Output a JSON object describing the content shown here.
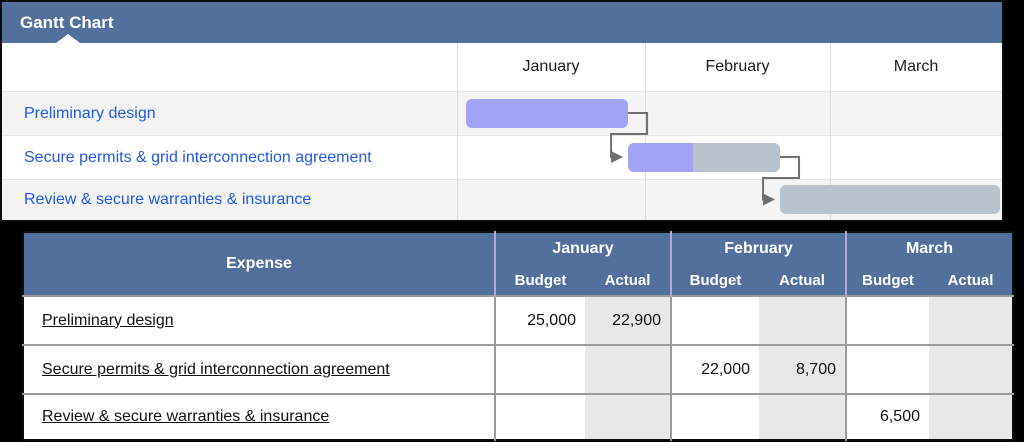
{
  "colors": {
    "header_blue": "#53709d",
    "bar_purple": "#a3a3f6",
    "bar_gray": "#b9c3cd",
    "task_link_blue": "#2359e0",
    "actual_value_blue": "#2359e0",
    "row_stripe": "#f4f4f4",
    "actual_cell_bg": "#e8e8e8",
    "connector_gray": "#6f6f6f"
  },
  "gantt": {
    "title": "Gantt Chart",
    "months": [
      "January",
      "February",
      "March"
    ],
    "tasks": [
      {
        "label": "Preliminary design",
        "row": 0,
        "start_month": 0.05,
        "end_month": 0.91,
        "progress": 1.0
      },
      {
        "label": "Secure permits & grid interconnection agreement",
        "row": 1,
        "start_month": 0.91,
        "end_month": 1.73,
        "progress": 0.43
      },
      {
        "label": "Review & secure warranties & insurance",
        "row": 2,
        "start_month": 1.73,
        "end_month": 2.99,
        "progress": 0.0
      }
    ]
  },
  "expense_table": {
    "header": {
      "expense": "Expense",
      "groups": [
        {
          "month": "January",
          "budget_label": "Budget",
          "actual_label": "Actual"
        },
        {
          "month": "February",
          "budget_label": "Budget",
          "actual_label": "Actual"
        },
        {
          "month": "March",
          "budget_label": "Budget",
          "actual_label": "Actual"
        }
      ]
    },
    "rows": [
      {
        "name": "Preliminary design",
        "jan_budget": "25,000",
        "jan_actual": "22,900",
        "feb_budget": "",
        "feb_actual": "",
        "mar_budget": "",
        "mar_actual": ""
      },
      {
        "name": "Secure permits & grid interconnection agreement",
        "jan_budget": "",
        "jan_actual": "",
        "feb_budget": "22,000",
        "feb_actual": "8,700",
        "mar_budget": "",
        "mar_actual": ""
      },
      {
        "name": "Review & secure warranties & insurance",
        "jan_budget": "",
        "jan_actual": "",
        "feb_budget": "",
        "feb_actual": "",
        "mar_budget": "6,500",
        "mar_actual": ""
      }
    ]
  },
  "chart_data": [
    {
      "type": "gantt",
      "title": "Gantt Chart",
      "x_categories": [
        "January",
        "February",
        "March"
      ],
      "tasks": [
        {
          "name": "Preliminary design",
          "start_month": 0.05,
          "end_month": 0.91,
          "completed_fraction": 1.0
        },
        {
          "name": "Secure permits & grid interconnection agreement",
          "start_month": 0.91,
          "end_month": 1.73,
          "completed_fraction": 0.43
        },
        {
          "name": "Review & secure warranties & insurance",
          "start_month": 1.73,
          "end_month": 2.99,
          "completed_fraction": 0.0
        }
      ],
      "notes": "purple = completed portion, gray = remaining portion; elbow arrows = finish-to-start dependencies between consecutive tasks"
    },
    {
      "type": "table",
      "title": "Expense",
      "columns": [
        "Expense",
        "January Budget",
        "January Actual",
        "February Budget",
        "February Actual",
        "March Budget",
        "March Actual"
      ],
      "rows": [
        [
          "Preliminary design",
          25000,
          22900,
          null,
          null,
          null,
          null
        ],
        [
          "Secure permits & grid interconnection agreement",
          null,
          null,
          22000,
          8700,
          null,
          null
        ],
        [
          "Review & secure warranties & insurance",
          null,
          null,
          null,
          null,
          6500,
          null
        ]
      ]
    }
  ]
}
